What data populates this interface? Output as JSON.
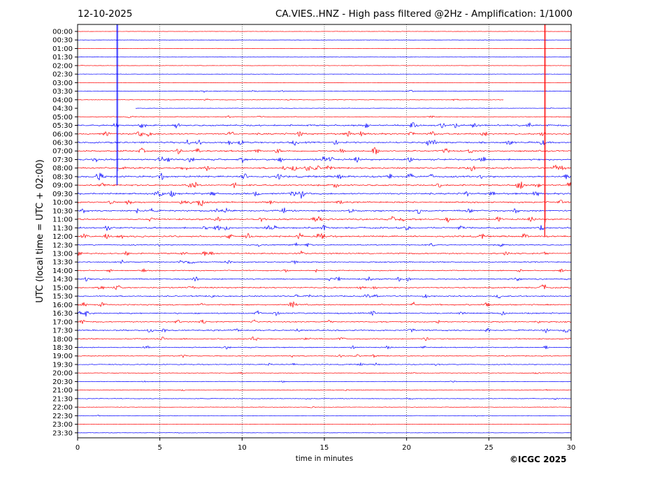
{
  "header": {
    "date": "12-10-2025",
    "title": "CA.VIES..HNZ - High pass filtered @2Hz - Amplification: 1/1000"
  },
  "footer": {
    "copyright": "©ICGC 2025"
  },
  "colors": {
    "trace_a": "#ff0000",
    "trace_b": "#0000ff",
    "grid": "#000000"
  },
  "chart_data": {
    "type": "line",
    "title": "CA.VIES..HNZ - High pass filtered @2Hz - Amplification: 1/1000",
    "xlabel": "time in minutes",
    "ylabel": "UTC (local time = UTC + 02:00)",
    "xlim": [
      0,
      30
    ],
    "xticks": [
      "0",
      "5",
      "10",
      "15",
      "20",
      "25",
      "30"
    ],
    "grid": "vertical dotted lines at 5-minute ticks",
    "rows": [
      "00:00",
      "00:30",
      "01:00",
      "01:30",
      "02:00",
      "02:30",
      "03:00",
      "03:30",
      "04:00",
      "04:30",
      "05:00",
      "05:30",
      "06:00",
      "06:30",
      "07:00",
      "07:30",
      "08:00",
      "08:30",
      "09:00",
      "09:30",
      "10:00",
      "10:30",
      "11:00",
      "11:30",
      "12:00",
      "12:30",
      "13:00",
      "13:30",
      "14:00",
      "14:30",
      "15:00",
      "15:30",
      "16:00",
      "16:30",
      "17:00",
      "17:30",
      "18:00",
      "18:30",
      "19:00",
      "19:30",
      "20:00",
      "20:30",
      "21:00",
      "21:30",
      "22:00",
      "22:30",
      "23:00",
      "23:30"
    ],
    "row_colors": "alternating red (even rows) and blue (odd rows)",
    "activity": [
      0.05,
      0.05,
      0.05,
      0.05,
      0.05,
      0.05,
      0.05,
      0.25,
      0.2,
      0.1,
      0.3,
      0.7,
      0.75,
      0.7,
      0.7,
      0.75,
      0.75,
      0.8,
      0.7,
      0.75,
      0.65,
      0.7,
      0.7,
      0.7,
      0.7,
      0.45,
      0.55,
      0.45,
      0.4,
      0.55,
      0.55,
      0.5,
      0.55,
      0.55,
      0.5,
      0.55,
      0.45,
      0.4,
      0.35,
      0.35,
      0.2,
      0.2,
      0.2,
      0.2,
      0.15,
      0.15,
      0.1,
      0.1
    ],
    "events": [
      {
        "type": "vertical spike",
        "time_min": 2.4,
        "rows": "00:00-09:00",
        "color": "blue"
      },
      {
        "type": "vertical spike",
        "time_min": 28.4,
        "rows": "00:00-12:00",
        "color": "red"
      }
    ],
    "gaps": [
      {
        "row": "04:00",
        "from_min": 25.9,
        "to_min": 30
      },
      {
        "row": "04:30",
        "from_min": 0,
        "to_min": 3.5
      }
    ]
  }
}
